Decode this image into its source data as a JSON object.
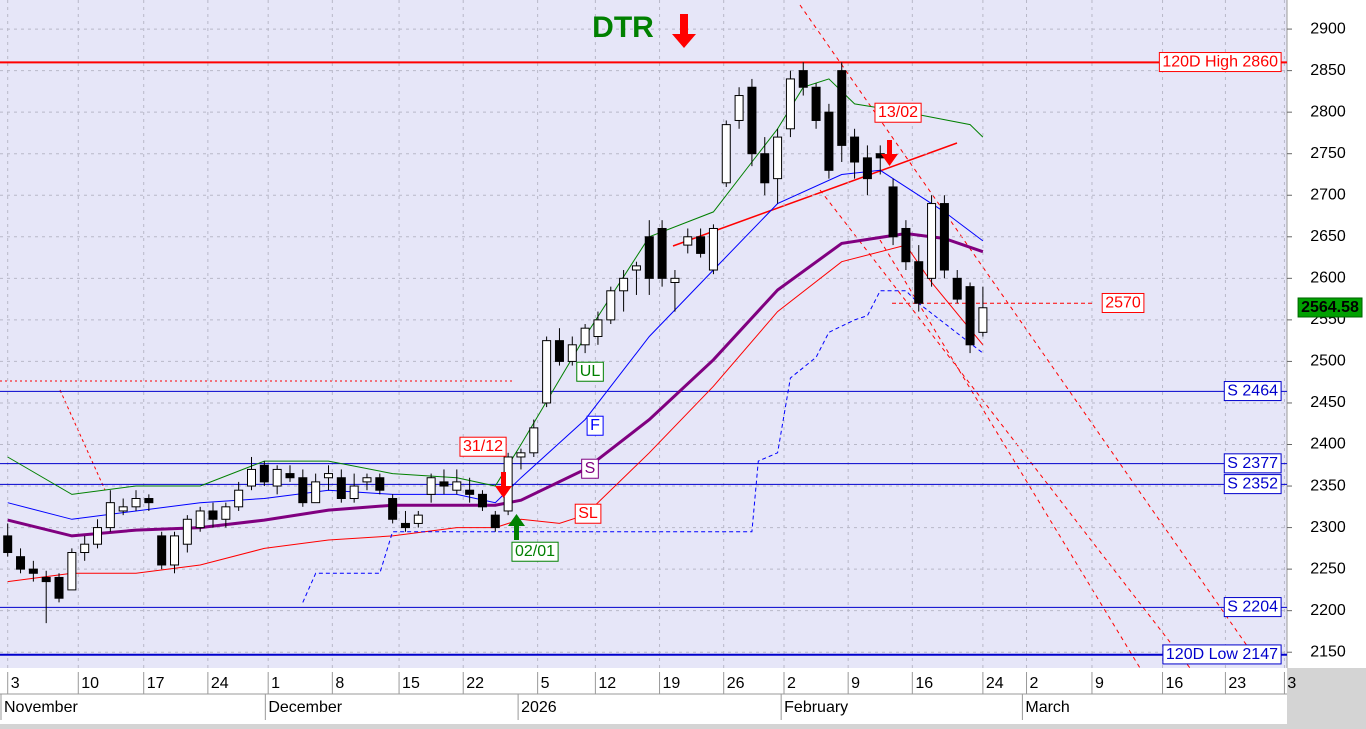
{
  "chart_data": {
    "type": "candlestick",
    "title": "DTR",
    "xlim": [
      -0.6,
      99.7
    ],
    "ylim": [
      2131,
      2935
    ],
    "yticks": [
      2150,
      2200,
      2250,
      2300,
      2350,
      2400,
      2450,
      2500,
      2550,
      2600,
      2650,
      2700,
      2750,
      2800,
      2850,
      2900
    ],
    "xticks": [
      {
        "value": 0,
        "label": "3"
      },
      {
        "value": 5.5,
        "label": "10"
      },
      {
        "value": 10.6,
        "label": "17"
      },
      {
        "value": 15.6,
        "label": "24"
      },
      {
        "value": 20.3,
        "label": "1"
      },
      {
        "value": 25.3,
        "label": "8"
      },
      {
        "value": 30.5,
        "label": "15"
      },
      {
        "value": 35.5,
        "label": "22"
      },
      {
        "value": 41.3,
        "label": "5"
      },
      {
        "value": 45.8,
        "label": "12"
      },
      {
        "value": 50.8,
        "label": "19"
      },
      {
        "value": 55.8,
        "label": "26"
      },
      {
        "value": 60.5,
        "label": "2"
      },
      {
        "value": 65.5,
        "label": "9"
      },
      {
        "value": 70.5,
        "label": "16"
      },
      {
        "value": 76,
        "label": "24"
      },
      {
        "value": 79.4,
        "label": "2"
      },
      {
        "value": 84.5,
        "label": "9"
      },
      {
        "value": 90,
        "label": "16"
      },
      {
        "value": 94.9,
        "label": "23"
      },
      {
        "value": 99.5,
        "label": "3"
      }
    ],
    "month_labels": [
      {
        "value": -0.6,
        "label": "November"
      },
      {
        "value": 20,
        "label": "December"
      },
      {
        "value": 39.7,
        "label": "2026"
      },
      {
        "value": 60.2,
        "label": "February"
      },
      {
        "value": 79,
        "label": "March"
      }
    ],
    "grid": true,
    "up_color": "#ffffff",
    "down_color": "#000000",
    "open": [
      2290,
      2265,
      2250,
      2240,
      2240,
      2225,
      2270,
      2280,
      2300,
      2320,
      2325,
      2335,
      2290,
      2255,
      2280,
      2300,
      2320,
      2310,
      2325,
      2350,
      2375,
      2350,
      2365,
      2360,
      2330,
      2360,
      2360,
      2335,
      2355,
      2360,
      2335,
      2305,
      2305,
      2340,
      2355,
      2345,
      2345,
      2340,
      2315,
      2320,
      2385,
      2390,
      2450,
      2525,
      2500,
      2520,
      2530,
      2550,
      2585,
      2610,
      2650,
      2660,
      2595,
      2640,
      2650,
      2610,
      2715,
      2790,
      2830,
      2750,
      2720,
      2780,
      2850,
      2830,
      2800,
      2850,
      2770,
      2745,
      2750,
      2710,
      2660,
      2620,
      2600,
      2690,
      2600,
      2590,
      2535
    ],
    "high": [
      2305,
      2275,
      2260,
      2248,
      2245,
      2275,
      2290,
      2310,
      2345,
      2335,
      2345,
      2340,
      2295,
      2295,
      2315,
      2325,
      2330,
      2330,
      2355,
      2385,
      2380,
      2375,
      2375,
      2370,
      2365,
      2375,
      2370,
      2365,
      2365,
      2365,
      2340,
      2320,
      2320,
      2365,
      2370,
      2370,
      2360,
      2345,
      2320,
      2390,
      2395,
      2430,
      2530,
      2540,
      2530,
      2545,
      2560,
      2590,
      2610,
      2620,
      2670,
      2670,
      2610,
      2660,
      2660,
      2665,
      2790,
      2830,
      2840,
      2770,
      2780,
      2850,
      2860,
      2835,
      2810,
      2860,
      2780,
      2760,
      2760,
      2720,
      2670,
      2640,
      2700,
      2700,
      2610,
      2595,
      2590
    ],
    "low": [
      2265,
      2245,
      2235,
      2185,
      2210,
      2225,
      2260,
      2275,
      2295,
      2315,
      2320,
      2320,
      2250,
      2245,
      2270,
      2295,
      2300,
      2300,
      2320,
      2345,
      2350,
      2340,
      2355,
      2325,
      2330,
      2345,
      2330,
      2330,
      2345,
      2340,
      2305,
      2295,
      2300,
      2330,
      2340,
      2340,
      2330,
      2320,
      2295,
      2315,
      2370,
      2385,
      2445,
      2495,
      2495,
      2510,
      2520,
      2545,
      2560,
      2580,
      2580,
      2590,
      2560,
      2630,
      2625,
      2605,
      2710,
      2780,
      2735,
      2700,
      2690,
      2770,
      2820,
      2780,
      2720,
      2740,
      2720,
      2700,
      2725,
      2640,
      2610,
      2560,
      2590,
      2600,
      2570,
      2510,
      2530
    ],
    "close": [
      2270,
      2250,
      2245,
      2235,
      2215,
      2270,
      2280,
      2300,
      2330,
      2325,
      2335,
      2330,
      2255,
      2290,
      2310,
      2320,
      2310,
      2325,
      2345,
      2370,
      2355,
      2370,
      2360,
      2330,
      2355,
      2365,
      2335,
      2350,
      2360,
      2345,
      2310,
      2300,
      2315,
      2360,
      2350,
      2355,
      2340,
      2325,
      2300,
      2385,
      2390,
      2420,
      2525,
      2500,
      2520,
      2540,
      2550,
      2585,
      2600,
      2615,
      2600,
      2600,
      2600,
      2650,
      2630,
      2660,
      2785,
      2820,
      2750,
      2715,
      2770,
      2840,
      2830,
      2790,
      2730,
      2760,
      2740,
      2720,
      2745,
      2650,
      2620,
      2570,
      2690,
      2610,
      2575,
      2520,
      2564.58
    ],
    "last_label": "2564.58",
    "lines": [
      {
        "name": "UL",
        "color": "#008000",
        "width": 1,
        "x": [
          0,
          5,
          10,
          15,
          20,
          25,
          30,
          35,
          38,
          40,
          45,
          50,
          55,
          58,
          60,
          62,
          64,
          66,
          70,
          75,
          76
        ],
        "values": [
          2385,
          2340,
          2350,
          2350,
          2380,
          2380,
          2365,
          2360,
          2350,
          2400,
          2530,
          2650,
          2680,
          2740,
          2780,
          2830,
          2840,
          2810,
          2800,
          2785,
          2770
        ]
      },
      {
        "name": "F",
        "color": "#0000ff",
        "width": 1,
        "x": [
          0,
          5,
          10,
          15,
          20,
          25,
          30,
          35,
          38,
          40,
          45,
          50,
          55,
          60,
          65,
          68,
          70,
          73,
          76
        ],
        "values": [
          2330,
          2310,
          2320,
          2330,
          2335,
          2345,
          2340,
          2340,
          2330,
          2360,
          2430,
          2530,
          2610,
          2690,
          2725,
          2730,
          2710,
          2680,
          2645
        ]
      },
      {
        "name": "S",
        "color": "#800080",
        "width": 3,
        "x": [
          0,
          5,
          10,
          15,
          20,
          25,
          30,
          35,
          38,
          40,
          45,
          50,
          55,
          60,
          65,
          70,
          73,
          76
        ],
        "values": [
          2309,
          2290,
          2297,
          2300,
          2309,
          2321,
          2327,
          2327,
          2327,
          2333,
          2370,
          2430,
          2502,
          2586,
          2642,
          2654,
          2648,
          2632
        ]
      },
      {
        "name": "SL",
        "color": "#ff0000",
        "width": 1,
        "x": [
          0,
          5,
          10,
          15,
          20,
          25,
          30,
          35,
          38,
          40,
          43,
          45,
          50,
          55,
          60,
          65,
          70,
          72,
          76
        ],
        "values": [
          2235,
          2245,
          2245,
          2255,
          2275,
          2285,
          2290,
          2300,
          2300,
          2310,
          2305,
          2315,
          2390,
          2470,
          2560,
          2620,
          2640,
          2595,
          2520
        ]
      },
      {
        "color": "#0000ff",
        "width": 1,
        "dashed": true,
        "x": [
          23,
          24,
          29,
          30,
          31,
          58,
          58.5,
          60,
          61,
          63,
          64,
          66,
          67,
          68,
          70,
          71,
          76
        ],
        "values": [
          2210,
          2245,
          2245,
          2295,
          2295,
          2295,
          2380,
          2390,
          2480,
          2505,
          2535,
          2550,
          2555,
          2585,
          2585,
          2570,
          2510
        ]
      }
    ],
    "levels": [
      {
        "value": 2860,
        "label": "120D High 2860",
        "color": "#ff0000",
        "width": 2
      },
      {
        "value": 2570,
        "label": "2570",
        "color": "#ff0000",
        "width": 1,
        "dashed": true
      },
      {
        "value": 2464,
        "label": "S 2464",
        "color": "#0000cc",
        "width": 1
      },
      {
        "value": 2377,
        "label": "S 2377",
        "color": "#0000cc",
        "width": 1
      },
      {
        "value": 2352,
        "label": "S 2352",
        "color": "#0000cc",
        "width": 1
      },
      {
        "value": 2204,
        "label": "S 2204",
        "color": "#0000cc",
        "width": 1
      },
      {
        "value": 2147,
        "label": "120D Low 2147",
        "color": "#0000cc",
        "width": 2
      }
    ],
    "annotations": [
      {
        "label": "13/02",
        "color": "#ff0000"
      },
      {
        "label": "31/12",
        "color": "#ff0000"
      },
      {
        "label": "02/01",
        "color": "#008000"
      }
    ]
  }
}
